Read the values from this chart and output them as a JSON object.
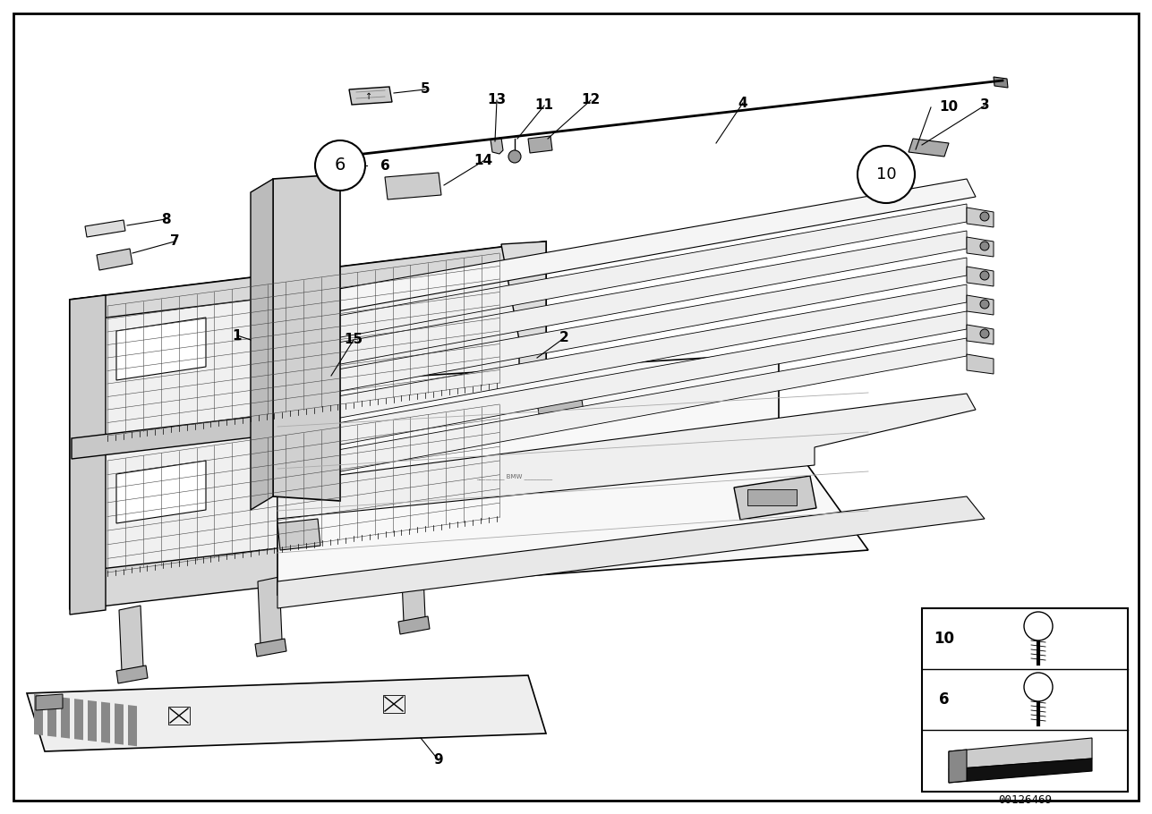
{
  "bg_color": "#ffffff",
  "border_color": "#000000",
  "line_color": "#000000",
  "diagram_id": "00126469",
  "fig_width": 12.87,
  "fig_height": 9.1,
  "border_linewidth": 2.0
}
